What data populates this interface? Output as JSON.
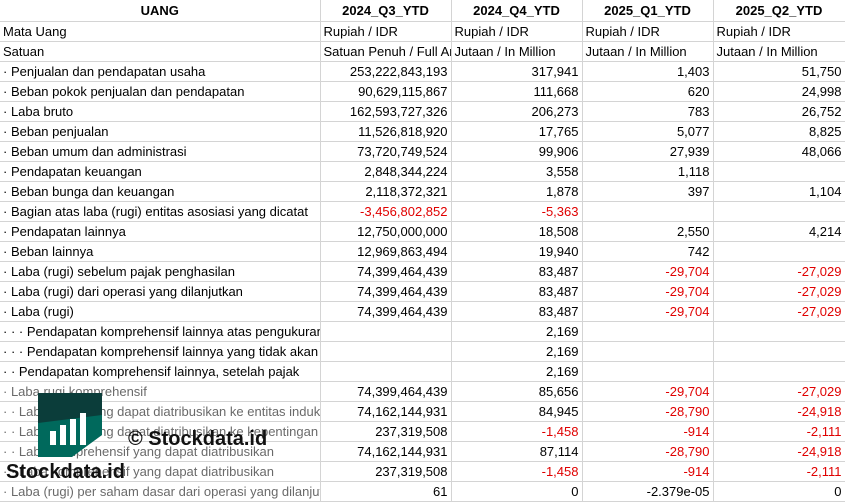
{
  "headers": [
    "UANG",
    "2024_Q3_YTD",
    "2024_Q4_YTD",
    "2025_Q1_YTD",
    "2025_Q2_YTD"
  ],
  "rows": [
    {
      "label": "Mata Uang",
      "values": [
        "Rupiah / IDR",
        "Rupiah / IDR",
        "Rupiah / IDR",
        "Rupiah / IDR"
      ],
      "align": "left"
    },
    {
      "label": "Satuan",
      "values": [
        "Satuan Penuh / Full Amount",
        "Jutaan / In Million",
        "Jutaan / In Million",
        "Jutaan / In Million"
      ],
      "align": "left"
    },
    {
      "label": "· Penjualan dan pendapatan usaha",
      "values": [
        "253,222,843,193",
        "317,941",
        "1,403",
        "51,750"
      ]
    },
    {
      "label": "· Beban pokok penjualan dan pendapatan",
      "values": [
        "90,629,115,867",
        "111,668",
        "620",
        "24,998"
      ]
    },
    {
      "label": "· Laba bruto",
      "values": [
        "162,593,727,326",
        "206,273",
        "783",
        "26,752"
      ]
    },
    {
      "label": "· Beban penjualan",
      "values": [
        "11,526,818,920",
        "17,765",
        "5,077",
        "8,825"
      ]
    },
    {
      "label": "· Beban umum dan administrasi",
      "values": [
        "73,720,749,524",
        "99,906",
        "27,939",
        "48,066"
      ]
    },
    {
      "label": "· Pendapatan keuangan",
      "values": [
        "2,848,344,224",
        "3,558",
        "1,118",
        ""
      ]
    },
    {
      "label": "· Beban bunga dan keuangan",
      "values": [
        "2,118,372,321",
        "1,878",
        "397",
        "1,104"
      ]
    },
    {
      "label": "· Bagian atas laba (rugi) entitas asosiasi yang dicatat",
      "values": [
        "-3,456,802,852",
        "-5,363",
        "",
        ""
      ]
    },
    {
      "label": "· Pendapatan lainnya",
      "values": [
        "12,750,000,000",
        "18,508",
        "2,550",
        "4,214"
      ]
    },
    {
      "label": "· Beban lainnya",
      "values": [
        "12,969,863,494",
        "19,940",
        "742",
        ""
      ]
    },
    {
      "label": "· Laba (rugi) sebelum pajak penghasilan",
      "values": [
        "74,399,464,439",
        "83,487",
        "-29,704",
        "-27,029"
      ]
    },
    {
      "label": "· Laba (rugi) dari operasi yang dilanjutkan",
      "values": [
        "74,399,464,439",
        "83,487",
        "-29,704",
        "-27,029"
      ]
    },
    {
      "label": "· Laba (rugi)",
      "values": [
        "74,399,464,439",
        "83,487",
        "-29,704",
        "-27,029"
      ]
    },
    {
      "label": "· · · Pendapatan komprehensif lainnya atas pengukuran kembali kewajiban",
      "values": [
        "",
        "2,169",
        "",
        ""
      ]
    },
    {
      "label": "· · · Pendapatan komprehensif lainnya yang tidak akan direklasifikasi ke laba",
      "values": [
        "",
        "2,169",
        "",
        ""
      ]
    },
    {
      "label": "· · Pendapatan komprehensif lainnya, setelah pajak",
      "values": [
        "",
        "2,169",
        "",
        ""
      ]
    },
    {
      "label": "· Laba rugi komprehensif",
      "values": [
        "74,399,464,439",
        "85,656",
        "-29,704",
        "-27,029"
      ],
      "gray": true
    },
    {
      "label": "· · Laba (rugi) yang dapat diatribusikan ke entitas induk",
      "values": [
        "74,162,144,931",
        "84,945",
        "-28,790",
        "-24,918"
      ],
      "gray": true
    },
    {
      "label": "· · Laba (rugi) yang dapat diatribusikan ke kepentingan",
      "values": [
        "237,319,508",
        "-1,458",
        "-914",
        "-2,111"
      ],
      "gray": true
    },
    {
      "label": "· · Laba komprehensif yang dapat diatribusikan",
      "values": [
        "74,162,144,931",
        "87,114",
        "-28,790",
        "-24,918"
      ],
      "gray": true
    },
    {
      "label": "· · Laba komprehensif yang dapat diatribusikan",
      "values": [
        "237,319,508",
        "-1,458",
        "-914",
        "-2,111"
      ],
      "gray": true
    },
    {
      "label": "· Laba (rugi) per saham dasar dari operasi yang dilanjutkan",
      "values": [
        "61",
        "0",
        "-2.379e-05",
        "0"
      ],
      "gray": true
    }
  ],
  "watermark": {
    "text_center": "© Stockdata.id",
    "text_logo": "Stockdata.id",
    "icon": "stockdata-logo-icon"
  },
  "colors": {
    "negative": "#e00000",
    "grid": "#d4d4d4",
    "logo_bg": "#00695c",
    "logo_top": "#0b3d3a"
  }
}
